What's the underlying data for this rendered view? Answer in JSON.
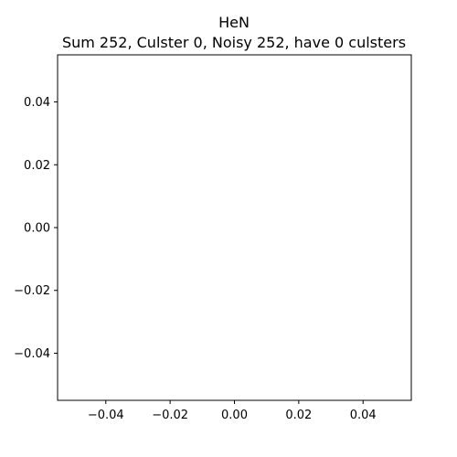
{
  "chart_data": {
    "type": "scatter",
    "title": "HeN",
    "subtitle": "Sum 252, Culster 0, Noisy 252, have 0 culsters",
    "xlabel": "",
    "ylabel": "",
    "x_ticks": [
      -0.04,
      -0.02,
      0.0,
      0.02,
      0.04
    ],
    "y_ticks": [
      0.04,
      0.02,
      0.0,
      -0.02,
      -0.04
    ],
    "x_tick_labels": [
      "−0.04",
      "−0.02",
      "0.00",
      "0.02",
      "0.04"
    ],
    "y_tick_labels": [
      "0.04",
      "0.02",
      "0.00",
      "−0.02",
      "−0.04"
    ],
    "xlim": [
      -0.055,
      0.055
    ],
    "ylim": [
      -0.055,
      0.055
    ],
    "points": [],
    "grid": false,
    "legend": false,
    "colors": {
      "axes": "#000000",
      "background": "#ffffff"
    }
  }
}
